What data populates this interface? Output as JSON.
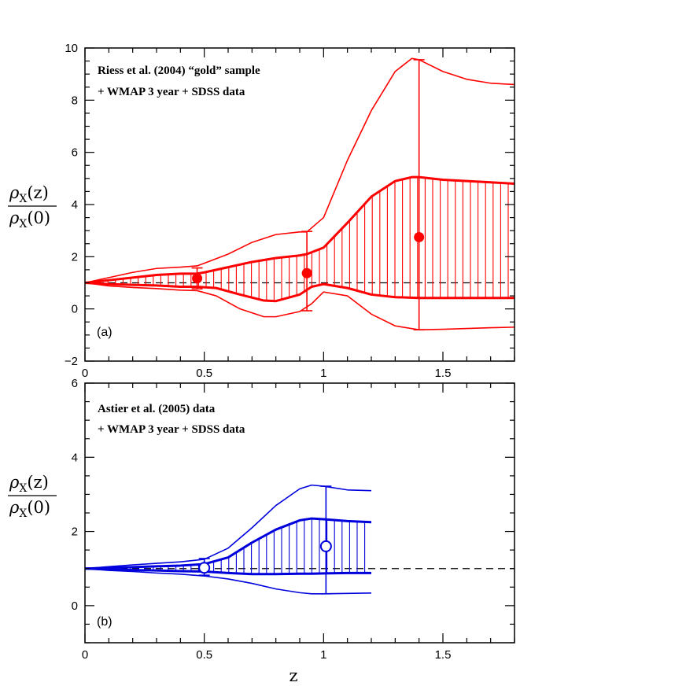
{
  "chart_data": [
    {
      "type": "line",
      "panel_label": "(a)",
      "annotation": [
        "Riess et al. (2004) “gold” sample",
        "+ WMAP 3 year + SDSS data"
      ],
      "ylabel": {
        "top": "ρ",
        "top_sub": "X",
        "top_arg": "(z)",
        "bottom": "ρ",
        "bottom_sub": "X",
        "bottom_arg": "(0)"
      },
      "xlim": [
        0,
        1.8
      ],
      "ylim": [
        -2,
        10
      ],
      "x_ticks": [
        "0",
        "0.5",
        "1",
        "1.5"
      ],
      "y_ticks": [
        "−2",
        "0",
        "2",
        "4",
        "6",
        "8",
        "10"
      ],
      "color": "#ff0000",
      "reference_line": 1,
      "outer_upper": {
        "x": [
          0,
          0.1,
          0.2,
          0.3,
          0.4,
          0.47,
          0.5,
          0.6,
          0.7,
          0.8,
          0.9,
          0.93,
          1.0,
          1.1,
          1.2,
          1.3,
          1.37,
          1.4,
          1.5,
          1.6,
          1.7,
          1.8
        ],
        "y": [
          1.0,
          1.2,
          1.4,
          1.55,
          1.6,
          1.65,
          1.75,
          2.1,
          2.55,
          2.85,
          2.95,
          2.95,
          3.5,
          5.7,
          7.6,
          9.1,
          9.6,
          9.55,
          9.1,
          8.8,
          8.65,
          8.6
        ]
      },
      "outer_lower": {
        "x": [
          0,
          0.1,
          0.2,
          0.3,
          0.4,
          0.47,
          0.55,
          0.65,
          0.75,
          0.8,
          0.9,
          0.95,
          1.0,
          1.1,
          1.2,
          1.3,
          1.4,
          1.5,
          1.6,
          1.7,
          1.8
        ],
        "y": [
          1.0,
          0.88,
          0.82,
          0.78,
          0.72,
          0.7,
          0.5,
          0.0,
          -0.3,
          -0.3,
          -0.1,
          0.2,
          0.65,
          0.5,
          -0.2,
          -0.65,
          -0.8,
          -0.78,
          -0.75,
          -0.72,
          -0.7
        ]
      },
      "band_upper": {
        "x": [
          0,
          0.1,
          0.2,
          0.3,
          0.4,
          0.47,
          0.5,
          0.6,
          0.7,
          0.8,
          0.9,
          0.93,
          1.0,
          1.1,
          1.2,
          1.3,
          1.37,
          1.4,
          1.5,
          1.6,
          1.7,
          1.8
        ],
        "y": [
          1.0,
          1.1,
          1.2,
          1.3,
          1.35,
          1.35,
          1.4,
          1.6,
          1.8,
          1.95,
          2.05,
          2.1,
          2.35,
          3.3,
          4.3,
          4.9,
          5.05,
          5.05,
          4.95,
          4.9,
          4.85,
          4.8
        ]
      },
      "band_lower": {
        "x": [
          0,
          0.1,
          0.2,
          0.3,
          0.4,
          0.47,
          0.55,
          0.65,
          0.75,
          0.8,
          0.9,
          0.95,
          1.0,
          1.1,
          1.2,
          1.3,
          1.4,
          1.5,
          1.6,
          1.7,
          1.8
        ],
        "y": [
          1.0,
          0.95,
          0.92,
          0.9,
          0.85,
          0.85,
          0.8,
          0.55,
          0.32,
          0.3,
          0.55,
          0.85,
          0.95,
          0.8,
          0.55,
          0.45,
          0.42,
          0.42,
          0.42,
          0.42,
          0.42
        ]
      },
      "points": [
        {
          "x": 0.47,
          "y": 1.17,
          "yerr_low": 0.77,
          "yerr_high": 1.57,
          "filled": true
        },
        {
          "x": 0.93,
          "y": 1.37,
          "yerr_low": -0.07,
          "yerr_high": 2.97,
          "filled": true
        },
        {
          "x": 1.4,
          "y": 2.75,
          "yerr_low": -0.8,
          "yerr_high": 9.55,
          "filled": true
        }
      ]
    },
    {
      "type": "line",
      "panel_label": "(b)",
      "annotation": [
        "Astier et al. (2005) data",
        "+ WMAP 3 year + SDSS data"
      ],
      "ylabel": {
        "top": "ρ",
        "top_sub": "X",
        "top_arg": "(z)",
        "bottom": "ρ",
        "bottom_sub": "X",
        "bottom_arg": "(0)"
      },
      "xlabel": "z",
      "xlim": [
        0,
        1.8
      ],
      "ylim": [
        -1,
        6
      ],
      "x_ticks": [
        "0",
        "0.5",
        "1",
        "1.5"
      ],
      "y_ticks": [
        "0",
        "2",
        "4",
        "6"
      ],
      "color": "#0000dd",
      "reference_line": 1,
      "outer_upper": {
        "x": [
          0,
          0.1,
          0.2,
          0.3,
          0.4,
          0.5,
          0.6,
          0.7,
          0.8,
          0.9,
          0.95,
          1.0,
          1.1,
          1.2
        ],
        "y": [
          1.0,
          1.05,
          1.1,
          1.14,
          1.18,
          1.25,
          1.55,
          2.1,
          2.7,
          3.15,
          3.25,
          3.22,
          3.12,
          3.1
        ]
      },
      "outer_lower": {
        "x": [
          0,
          0.1,
          0.2,
          0.3,
          0.4,
          0.5,
          0.6,
          0.7,
          0.8,
          0.9,
          0.95,
          1.0,
          1.1,
          1.2
        ],
        "y": [
          1.0,
          0.95,
          0.92,
          0.88,
          0.85,
          0.8,
          0.72,
          0.6,
          0.45,
          0.35,
          0.32,
          0.32,
          0.33,
          0.34
        ]
      },
      "band_upper": {
        "x": [
          0,
          0.1,
          0.2,
          0.3,
          0.4,
          0.5,
          0.6,
          0.7,
          0.8,
          0.9,
          0.95,
          1.0,
          1.1,
          1.2
        ],
        "y": [
          1.0,
          1.02,
          1.04,
          1.06,
          1.08,
          1.12,
          1.3,
          1.7,
          2.05,
          2.3,
          2.35,
          2.33,
          2.28,
          2.25
        ]
      },
      "band_lower": {
        "x": [
          0,
          0.1,
          0.2,
          0.3,
          0.4,
          0.5,
          0.6,
          0.7,
          0.8,
          0.9,
          0.95,
          1.0,
          1.1,
          1.2
        ],
        "y": [
          1.0,
          0.98,
          0.96,
          0.95,
          0.93,
          0.92,
          0.88,
          0.85,
          0.85,
          0.86,
          0.86,
          0.87,
          0.88,
          0.88
        ]
      },
      "points": [
        {
          "x": 0.5,
          "y": 1.02,
          "yerr_low": 0.82,
          "yerr_high": 1.27,
          "filled": false
        },
        {
          "x": 1.01,
          "y": 1.6,
          "yerr_low": 0.32,
          "yerr_high": 3.22,
          "filled": false
        }
      ]
    }
  ]
}
